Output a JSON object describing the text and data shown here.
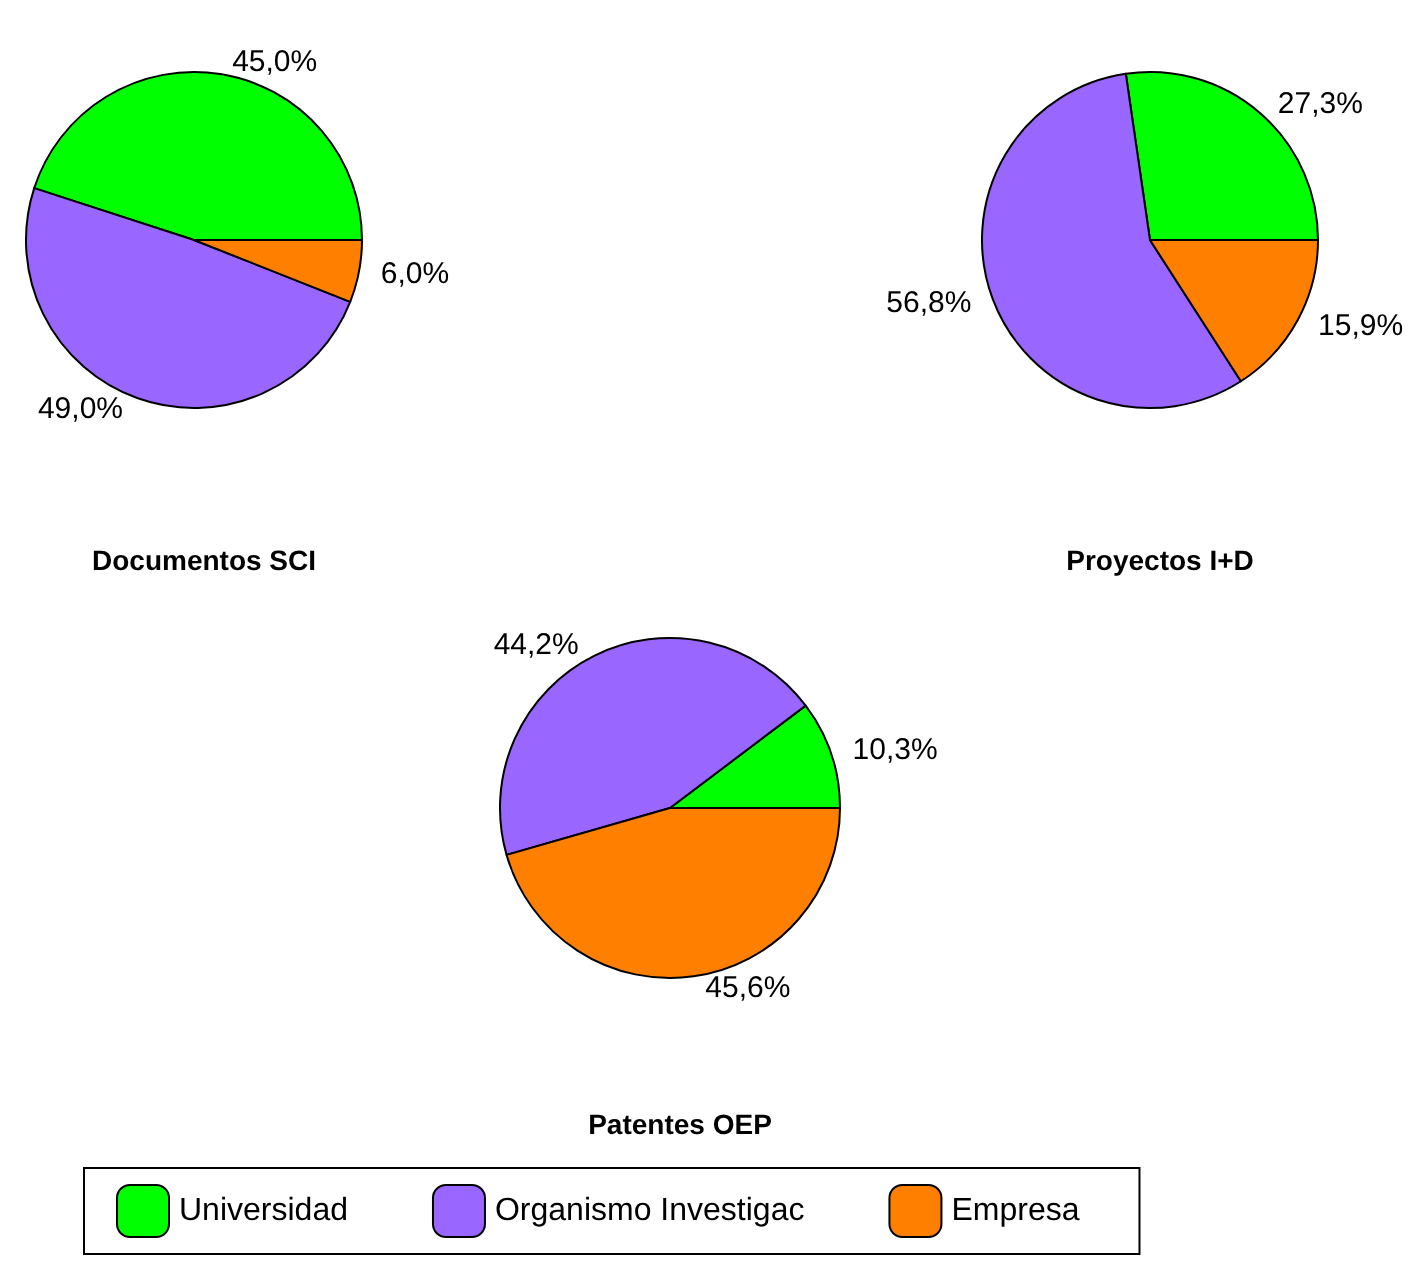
{
  "chart_data": [
    {
      "type": "pie",
      "title": "Documentos SCI",
      "categories": [
        null,
        null,
        null
      ],
      "values": [
        45.0,
        49.0,
        6.0
      ],
      "colors": [
        "#00ff00",
        "#9966ff",
        "#ff8000"
      ],
      "value_labels": [
        "45,0%",
        "49,0%",
        "6,0%"
      ],
      "legend": false
    },
    {
      "type": "pie",
      "title": "Proyectos I+D",
      "categories": [
        null,
        null,
        null
      ],
      "values": [
        27.3,
        56.8,
        15.9
      ],
      "colors": [
        "#00ff00",
        "#9966ff",
        "#ff8000"
      ],
      "value_labels": [
        "27,3%",
        "56,8%",
        "15,9%"
      ],
      "legend": false
    },
    {
      "type": "pie",
      "title": "Patentes OEP",
      "categories": [
        "Universidad",
        "Organismo Investigac",
        "Empresa"
      ],
      "values": [
        10.3,
        44.2,
        45.6
      ],
      "colors": [
        "#00ff00",
        "#9966ff",
        "#ff8000"
      ],
      "value_labels": [
        "10,3%",
        "44,2%",
        "45,6%"
      ],
      "legend": "bottom"
    }
  ]
}
